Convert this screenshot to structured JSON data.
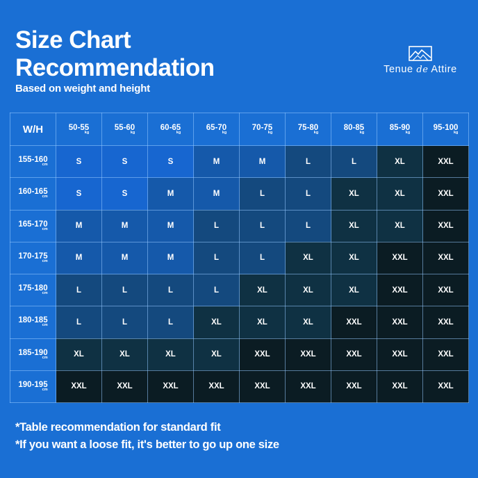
{
  "header": {
    "title_line1": "Size Chart",
    "title_line2": "Recommendation",
    "subtitle": "Based on weight and height"
  },
  "brand": {
    "name_part1": "Tenue",
    "name_part2": "de",
    "name_part3": "Attire"
  },
  "chart_data": {
    "type": "table",
    "corner_label": "W/H",
    "weight_unit": "kg",
    "height_unit": "cm",
    "columns": [
      "50-55",
      "55-60",
      "60-65",
      "65-70",
      "70-75",
      "75-80",
      "80-85",
      "85-90",
      "95-100"
    ],
    "rows": [
      {
        "height": "155-160",
        "sizes": [
          "S",
          "S",
          "S",
          "M",
          "M",
          "L",
          "L",
          "XL",
          "XXL"
        ]
      },
      {
        "height": "160-165",
        "sizes": [
          "S",
          "S",
          "M",
          "M",
          "L",
          "L",
          "XL",
          "XL",
          "XXL"
        ]
      },
      {
        "height": "165-170",
        "sizes": [
          "M",
          "M",
          "M",
          "L",
          "L",
          "L",
          "XL",
          "XL",
          "XXL"
        ]
      },
      {
        "height": "170-175",
        "sizes": [
          "M",
          "M",
          "M",
          "L",
          "L",
          "XL",
          "XL",
          "XXL",
          "XXL"
        ]
      },
      {
        "height": "175-180",
        "sizes": [
          "L",
          "L",
          "L",
          "L",
          "XL",
          "XL",
          "XL",
          "XXL",
          "XXL"
        ]
      },
      {
        "height": "180-185",
        "sizes": [
          "L",
          "L",
          "L",
          "XL",
          "XL",
          "XL",
          "XXL",
          "XXL",
          "XXL"
        ]
      },
      {
        "height": "185-190",
        "sizes": [
          "XL",
          "XL",
          "XL",
          "XL",
          "XXL",
          "XXL",
          "XXL",
          "XXL",
          "XXL"
        ]
      },
      {
        "height": "190-195",
        "sizes": [
          "XXL",
          "XXL",
          "XXL",
          "XXL",
          "XXL",
          "XXL",
          "XXL",
          "XXL",
          "XXL"
        ]
      }
    ]
  },
  "notes": {
    "line1": "*Table recommendation for standard fit",
    "line2": "*If you want a loose fit, it's better to go up one size"
  },
  "colors": {
    "background": "#1a6fd4",
    "text": "#ffffff",
    "grid_line": "#8fc3ff"
  }
}
